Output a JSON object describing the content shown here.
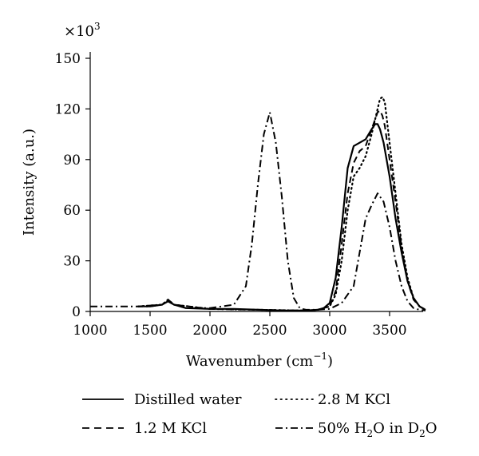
{
  "chart_data": {
    "type": "line",
    "title": "",
    "xlabel": "Wavenumber (cm",
    "xlabel_sup": "−1",
    "xlabel_end": ")",
    "ylabel": "Intensity (a.u.)",
    "y_multiplier_prefix": "×10",
    "y_multiplier_exp": "3",
    "xlim": [
      1000,
      3900
    ],
    "ylim": [
      0,
      155
    ],
    "x_ticks": [
      1000,
      1500,
      2000,
      2500,
      3000,
      3500
    ],
    "y_ticks": [
      0,
      30,
      60,
      90,
      120,
      150
    ],
    "grid": false,
    "legend_position": "bottom",
    "series": [
      {
        "name": "Distilled water",
        "style": "solid",
        "x": [
          1400,
          1500,
          1600,
          1650,
          1700,
          1800,
          2000,
          2200,
          2400,
          2600,
          2800,
          2900,
          2950,
          3000,
          3050,
          3100,
          3150,
          3200,
          3250,
          3300,
          3350,
          3380,
          3400,
          3420,
          3450,
          3500,
          3550,
          3600,
          3650,
          3700,
          3750,
          3800
        ],
        "y": [
          3,
          3,
          4,
          6,
          4,
          2,
          1.5,
          1.5,
          1,
          0.5,
          0.5,
          1,
          2,
          5,
          20,
          50,
          85,
          98,
          100,
          102,
          108,
          111,
          111,
          108,
          100,
          80,
          55,
          35,
          18,
          8,
          3,
          1
        ]
      },
      {
        "name": "2.8 M KCl",
        "style": "dotted",
        "x": [
          1400,
          1600,
          1650,
          1700,
          2000,
          2400,
          2800,
          2900,
          3000,
          3050,
          3100,
          3150,
          3200,
          3250,
          3300,
          3350,
          3400,
          3420,
          3440,
          3460,
          3500,
          3550,
          3600,
          3650,
          3700,
          3750,
          3800
        ],
        "y": [
          3,
          4,
          7,
          4,
          1.5,
          1,
          0.5,
          1,
          3,
          10,
          30,
          60,
          80,
          85,
          92,
          105,
          120,
          126,
          127,
          124,
          100,
          70,
          40,
          20,
          8,
          3,
          1
        ]
      },
      {
        "name": "1.2 M KCl",
        "style": "dashed",
        "x": [
          1400,
          1600,
          1650,
          1700,
          2000,
          2400,
          2800,
          2900,
          3000,
          3050,
          3100,
          3150,
          3200,
          3250,
          3300,
          3350,
          3400,
          3420,
          3440,
          3460,
          3500,
          3550,
          3600,
          3650,
          3700,
          3750,
          3800
        ],
        "y": [
          3,
          4,
          7,
          4,
          1.5,
          1,
          0.5,
          1,
          3,
          12,
          40,
          70,
          88,
          95,
          98,
          108,
          118,
          119,
          116,
          110,
          90,
          65,
          38,
          18,
          7,
          3,
          1
        ]
      },
      {
        "name": "50% H2O in D2O",
        "name_parts": [
          "50% H",
          "2",
          "O in D",
          "2",
          "O"
        ],
        "style": "dashdot",
        "x": [
          1000,
          1200,
          1400,
          1500,
          1600,
          1650,
          1700,
          1800,
          2000,
          2200,
          2300,
          2350,
          2400,
          2450,
          2500,
          2550,
          2600,
          2650,
          2700,
          2750,
          2800,
          2900,
          3000,
          3100,
          3200,
          3250,
          3300,
          3350,
          3400,
          3450,
          3500,
          3550,
          3600,
          3650,
          3700,
          3750,
          3800
        ],
        "y": [
          3,
          3,
          3,
          3,
          4,
          6,
          4,
          2,
          2,
          4,
          15,
          40,
          75,
          105,
          118,
          100,
          68,
          30,
          8,
          2,
          1,
          1,
          1.5,
          5,
          15,
          35,
          55,
          63,
          70,
          65,
          50,
          30,
          15,
          6,
          2,
          1,
          0.5
        ]
      }
    ]
  }
}
